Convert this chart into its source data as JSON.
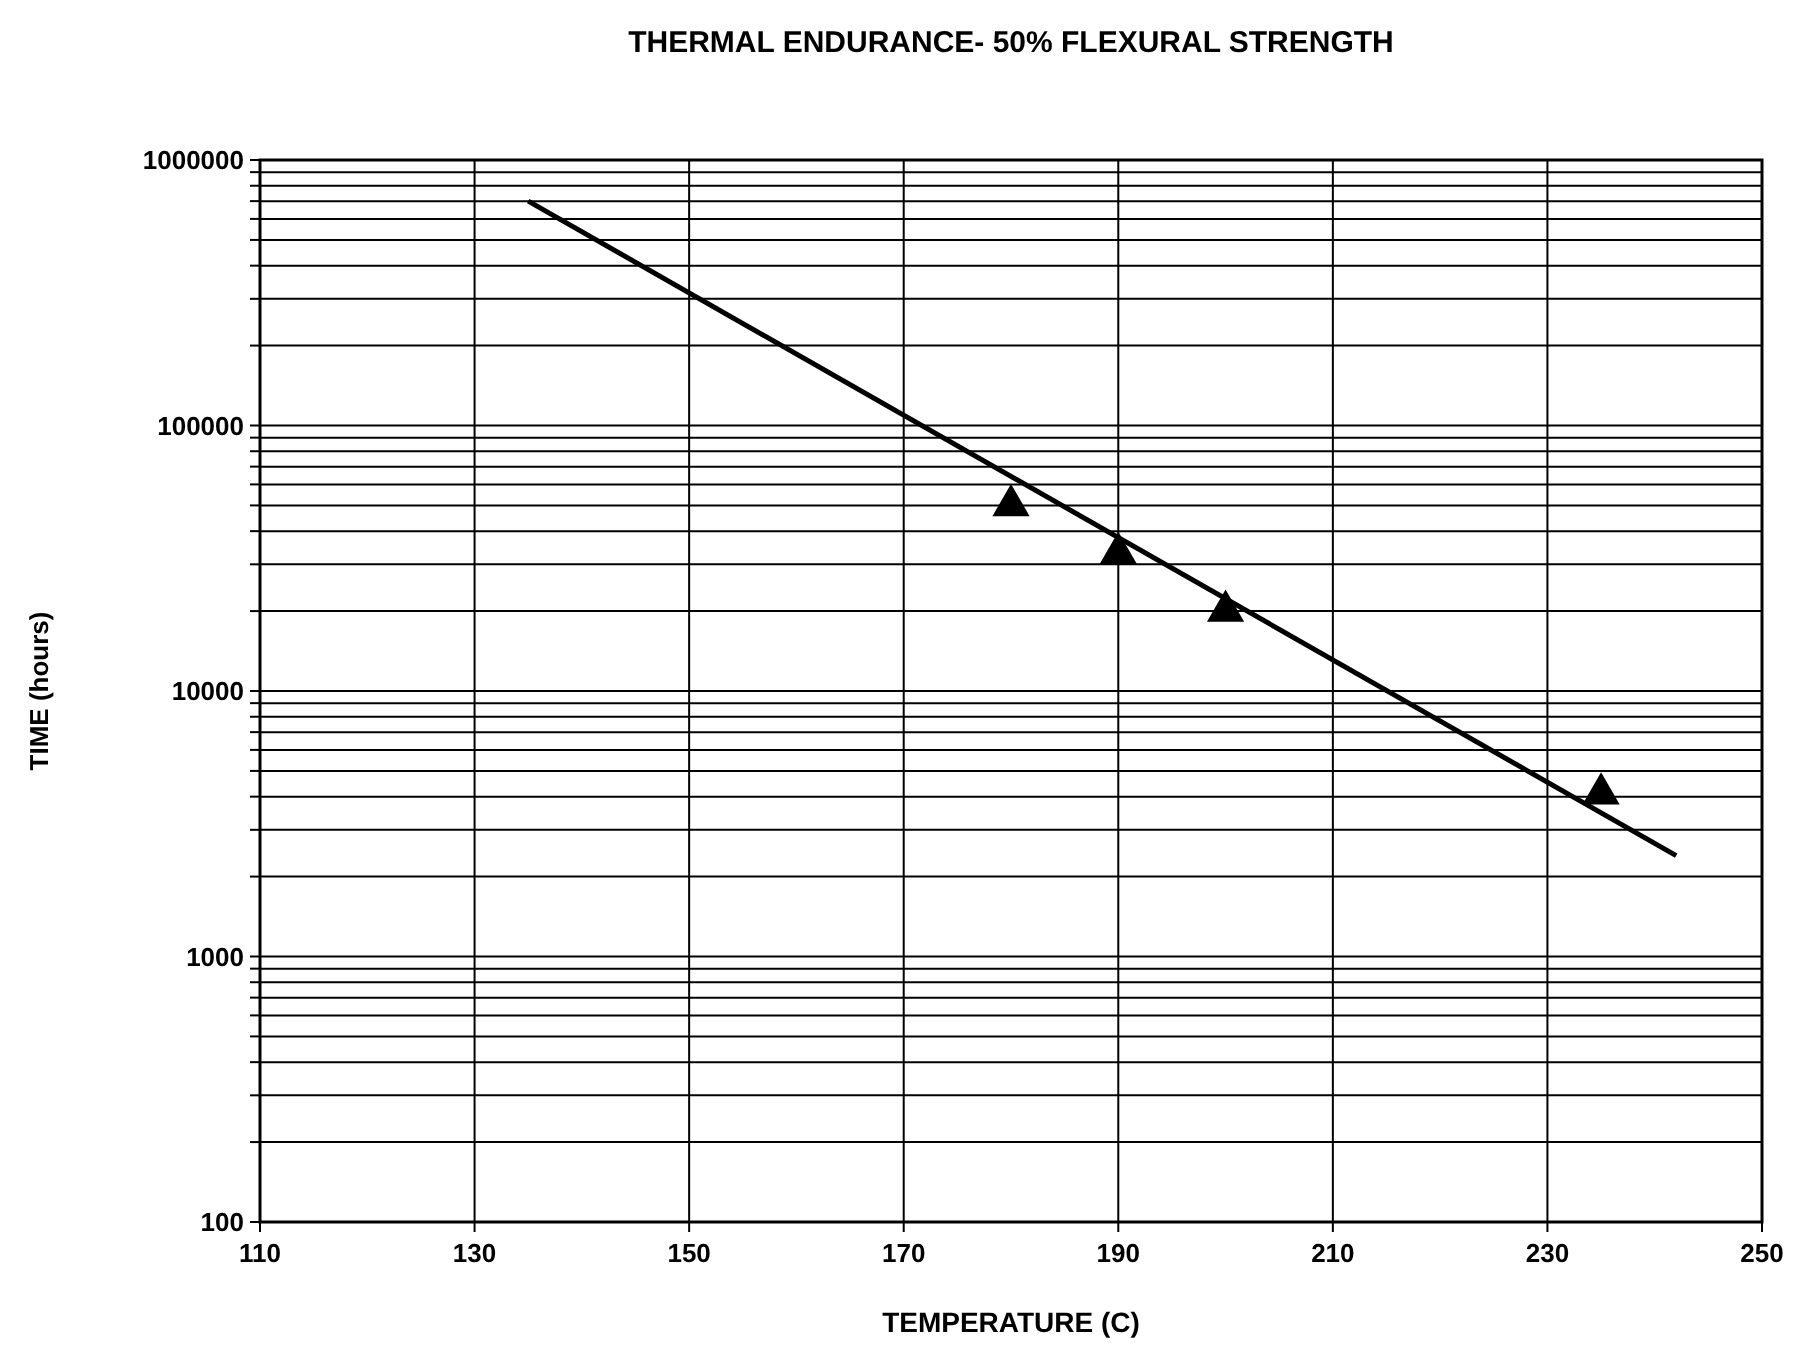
{
  "chart_data": {
    "type": "scatter",
    "title": "THERMAL ENDURANCE- 50% FLEXURAL STRENGTH",
    "xlabel": "TEMPERATURE (C)",
    "ylabel": "TIME (hours)",
    "log": "y",
    "grid": true,
    "xlim": [
      110,
      250
    ],
    "xticks": [
      110,
      130,
      150,
      170,
      190,
      210,
      230,
      250
    ],
    "ylim": [
      100,
      1000000
    ],
    "yticks": [
      100,
      {
        "value": 200,
        "label": null
      },
      {
        "value": 300,
        "label": null
      },
      {
        "value": 400,
        "label": null
      },
      {
        "value": 500,
        "label": null
      },
      {
        "value": 600,
        "label": null
      },
      {
        "value": 700,
        "label": null
      },
      {
        "value": 800,
        "label": null
      },
      {
        "value": 900,
        "label": null
      },
      1000,
      {
        "value": 2000,
        "label": null
      },
      {
        "value": 3000,
        "label": null
      },
      {
        "value": 4000,
        "label": null
      },
      {
        "value": 5000,
        "label": null
      },
      {
        "value": 6000,
        "label": null
      },
      {
        "value": 7000,
        "label": null
      },
      {
        "value": 8000,
        "label": null
      },
      {
        "value": 9000,
        "label": null
      },
      10000,
      {
        "value": 20000,
        "label": null
      },
      {
        "value": 30000,
        "label": null
      },
      {
        "value": 40000,
        "label": null
      },
      {
        "value": 50000,
        "label": null
      },
      {
        "value": 60000,
        "label": null
      },
      {
        "value": 70000,
        "label": null
      },
      {
        "value": 80000,
        "label": null
      },
      {
        "value": 90000,
        "label": null
      },
      100000,
      {
        "value": 200000,
        "label": null
      },
      {
        "value": 300000,
        "label": null
      },
      {
        "value": 400000,
        "label": null
      },
      {
        "value": 500000,
        "label": null
      },
      {
        "value": 600000,
        "label": null
      },
      {
        "value": 700000,
        "label": null
      },
      {
        "value": 800000,
        "label": null
      },
      {
        "value": 900000,
        "label": null
      },
      1000000
    ],
    "series": [
      {
        "color": "#000000",
        "marker": "triangle",
        "x": [
          180,
          190,
          200,
          235
        ],
        "values": [
          50000,
          33000,
          20000,
          4100
        ]
      },
      {
        "type": "line",
        "color": "#000000",
        "marker": "none",
        "line_style": "solid",
        "x": [
          135,
          242
        ],
        "values": [
          700000,
          2400
        ]
      }
    ]
  }
}
